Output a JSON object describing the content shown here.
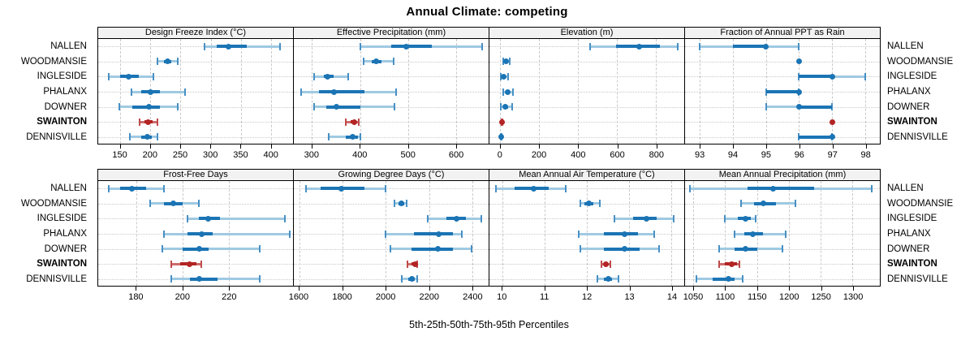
{
  "chart_data": {
    "type": "trellis-dotplot",
    "title": "Annual Climate: competing",
    "xlabel": "5th-25th-50th-75th-95th Percentiles",
    "percentiles": [
      "5th",
      "25th",
      "50th",
      "75th",
      "95th"
    ],
    "categories": [
      "NALLEN",
      "WOODMANSIE",
      "INGLESIDE",
      "PHALANX",
      "DOWNER",
      "SWAINTON",
      "DENNISVILLE"
    ],
    "highlight_category": "SWAINTON",
    "grid": true,
    "legend_position": "none",
    "colors": {
      "series_dark": "#1b74b4",
      "series_light": "#9fc9e2",
      "series_cap": "#4790c5",
      "highlight_dark": "#b32424",
      "highlight_light": "#cc6b6b",
      "highlight_cap": "#bf4a4a",
      "grid": "#c9c9c9",
      "strip_bg": "#f2f2f2",
      "border": "#000000",
      "text": "#000000"
    },
    "panels": [
      {
        "title": "Design Freeze Index (°C)",
        "row": 0,
        "col": 0,
        "xlim": [
          113,
          437
        ],
        "ticks": [
          150,
          200,
          250,
          300,
          350,
          400
        ],
        "series": [
          [
            290,
            310,
            330,
            360,
            415
          ],
          [
            212,
            222,
            228,
            235,
            245
          ],
          [
            130,
            150,
            163,
            180,
            205
          ],
          [
            168,
            185,
            200,
            215,
            258
          ],
          [
            148,
            170,
            198,
            215,
            245
          ],
          [
            182,
            190,
            196,
            203,
            212
          ],
          [
            165,
            185,
            195,
            202,
            212
          ]
        ]
      },
      {
        "title": "Effective Precipitation (mm)",
        "row": 0,
        "col": 1,
        "xlim": [
          262,
          668
        ],
        "ticks": [
          300,
          400,
          500,
          600
        ],
        "series": [
          [
            400,
            465,
            497,
            550,
            655
          ],
          [
            408,
            425,
            433,
            445,
            470
          ],
          [
            305,
            325,
            333,
            345,
            375
          ],
          [
            278,
            315,
            345,
            410,
            475
          ],
          [
            305,
            330,
            350,
            400,
            472
          ],
          [
            370,
            380,
            388,
            393,
            397
          ],
          [
            335,
            370,
            385,
            395,
            400
          ]
        ]
      },
      {
        "title": "Elevation (m)",
        "row": 0,
        "col": 2,
        "xlim": [
          -55,
          945
        ],
        "ticks": [
          0,
          200,
          400,
          600,
          800
        ],
        "series": [
          [
            460,
            595,
            715,
            820,
            910
          ],
          [
            15,
            25,
            30,
            40,
            50
          ],
          [
            5,
            12,
            18,
            28,
            40
          ],
          [
            15,
            28,
            38,
            50,
            65
          ],
          [
            5,
            15,
            25,
            40,
            60
          ],
          [
            6,
            7,
            8,
            9,
            10
          ],
          [
            3,
            4,
            5,
            6,
            8
          ]
        ]
      },
      {
        "title": "Fraction of Annual PPT as Rain",
        "row": 0,
        "col": 3,
        "xlim": [
          92.55,
          98.45
        ],
        "ticks": [
          93,
          94,
          95,
          96,
          97,
          98
        ],
        "series": [
          [
            93,
            94,
            95,
            95,
            96
          ],
          [
            96,
            96,
            96,
            96,
            96
          ],
          [
            96,
            96,
            97,
            97,
            98
          ],
          [
            95,
            95,
            96,
            96,
            96
          ],
          [
            95,
            96,
            96,
            97,
            97
          ],
          [
            97,
            97,
            97,
            97,
            97
          ],
          [
            96,
            96,
            97,
            97,
            97
          ]
        ]
      },
      {
        "title": "Frost-Free Days",
        "row": 1,
        "col": 0,
        "xlim": [
          163.5,
          247.5
        ],
        "ticks": [
          180,
          200,
          220
        ],
        "series": [
          [
            168,
            173,
            178,
            184,
            192
          ],
          [
            186,
            192,
            196,
            200,
            207
          ],
          [
            202,
            207,
            211,
            216,
            244
          ],
          [
            192,
            202,
            208,
            213,
            246
          ],
          [
            191,
            200,
            207,
            211,
            233
          ],
          [
            195,
            199,
            203,
            206,
            208
          ],
          [
            195,
            203,
            207,
            215,
            233
          ]
        ]
      },
      {
        "title": "Growing Degree Days (°C)",
        "row": 1,
        "col": 1,
        "xlim": [
          1575,
          2475
        ],
        "ticks": [
          1600,
          1800,
          2000,
          2200,
          2400
        ],
        "series": [
          [
            1630,
            1700,
            1795,
            1900,
            2000
          ],
          [
            2040,
            2060,
            2070,
            2085,
            2095
          ],
          [
            2195,
            2280,
            2325,
            2370,
            2440
          ],
          [
            2000,
            2130,
            2245,
            2310,
            2350
          ],
          [
            2020,
            2120,
            2240,
            2310,
            2395
          ],
          [
            2100,
            2120,
            2135,
            2140,
            2145
          ],
          [
            2075,
            2105,
            2120,
            2135,
            2145
          ]
        ]
      },
      {
        "title": "Mean Annual Air Temperature (°C)",
        "row": 1,
        "col": 2,
        "xlim": [
          9.7,
          14.3
        ],
        "ticks": [
          10,
          11,
          12,
          13,
          14
        ],
        "series": [
          [
            9.85,
            10.3,
            10.75,
            11.1,
            11.5
          ],
          [
            11.85,
            11.95,
            12.05,
            12.15,
            12.3
          ],
          [
            12.65,
            13.1,
            13.4,
            13.65,
            14.05
          ],
          [
            11.8,
            12.4,
            12.9,
            13.2,
            13.6
          ],
          [
            11.85,
            12.4,
            12.9,
            13.25,
            13.7
          ],
          [
            12.35,
            12.4,
            12.45,
            12.5,
            12.55
          ],
          [
            12.25,
            12.4,
            12.5,
            12.6,
            12.75
          ]
        ]
      },
      {
        "title": "Mean Annual Precipitation (mm)",
        "row": 1,
        "col": 3,
        "xlim": [
          1037,
          1343
        ],
        "ticks": [
          1050,
          1100,
          1150,
          1200,
          1250,
          1300
        ],
        "series": [
          [
            1045,
            1135,
            1175,
            1240,
            1330
          ],
          [
            1125,
            1145,
            1160,
            1180,
            1210
          ],
          [
            1100,
            1120,
            1132,
            1140,
            1148
          ],
          [
            1115,
            1130,
            1143,
            1160,
            1195
          ],
          [
            1090,
            1115,
            1132,
            1150,
            1190
          ],
          [
            1090,
            1100,
            1110,
            1118,
            1122
          ],
          [
            1055,
            1080,
            1105,
            1115,
            1127
          ]
        ]
      }
    ]
  }
}
